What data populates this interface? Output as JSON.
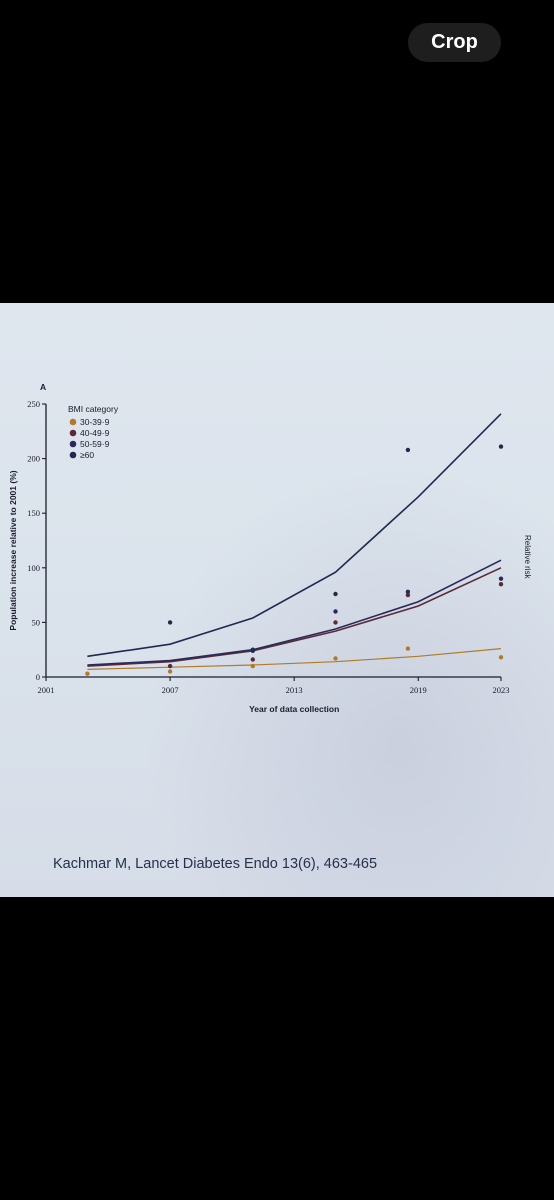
{
  "app": {
    "crop_label": "Crop"
  },
  "photo": {
    "citation": "Kachmar M, Lancet Diabetes Endo 13(6), 463-465",
    "right_edge_text": "Relative risk"
  },
  "colors": {
    "background": "#000000",
    "button_bg": "#1e1e1e",
    "paper": "#dde4ec",
    "series_30_39": "#b07a2a",
    "series_40_49": "#5a2a3a",
    "series_50_59": "#2a2a5a",
    "series_60": "#1e2a50"
  },
  "chart_data": {
    "type": "scatter",
    "panel_label": "A",
    "xlabel": "Year of data collection",
    "ylabel": "Population increase relative to 2001 (%)",
    "xlim": [
      2001,
      2023
    ],
    "ylim": [
      0,
      250
    ],
    "xticks": [
      2001,
      2007,
      2013,
      2019,
      2023
    ],
    "yticks": [
      0,
      50,
      100,
      150,
      200,
      250
    ],
    "legend_title": "BMI category",
    "legend_position": "top-left",
    "series": [
      {
        "name": "30-39·9",
        "color": "#b07a2a",
        "points": [
          [
            2003,
            3
          ],
          [
            2007,
            5
          ],
          [
            2011,
            10
          ],
          [
            2015,
            17
          ],
          [
            2018.5,
            26
          ],
          [
            2023,
            18
          ]
        ],
        "trend": [
          [
            2003,
            7
          ],
          [
            2007,
            9
          ],
          [
            2011,
            11
          ],
          [
            2015,
            14
          ],
          [
            2019,
            19
          ],
          [
            2023,
            26
          ]
        ]
      },
      {
        "name": "40-49·9",
        "color": "#5a2a3a",
        "points": [
          [
            2007,
            10
          ],
          [
            2011,
            16
          ],
          [
            2015,
            50
          ],
          [
            2018.5,
            75
          ],
          [
            2023,
            85
          ]
        ],
        "trend": [
          [
            2003,
            10
          ],
          [
            2007,
            14
          ],
          [
            2011,
            24
          ],
          [
            2015,
            42
          ],
          [
            2019,
            65
          ],
          [
            2023,
            100
          ]
        ]
      },
      {
        "name": "50-59·9",
        "color": "#2a2a5a",
        "points": [
          [
            2011,
            24
          ],
          [
            2015,
            60
          ],
          [
            2018.5,
            78
          ],
          [
            2023,
            90
          ]
        ],
        "trend": [
          [
            2003,
            11
          ],
          [
            2007,
            15
          ],
          [
            2011,
            25
          ],
          [
            2015,
            44
          ],
          [
            2019,
            69
          ],
          [
            2023,
            107
          ]
        ]
      },
      {
        "name": "≥60",
        "color": "#1e2a50",
        "points": [
          [
            2007,
            50
          ],
          [
            2011,
            25
          ],
          [
            2015,
            76
          ],
          [
            2018.5,
            208
          ],
          [
            2023,
            211
          ]
        ],
        "trend": [
          [
            2003,
            19
          ],
          [
            2007,
            30
          ],
          [
            2011,
            54
          ],
          [
            2015,
            96
          ],
          [
            2019,
            165
          ],
          [
            2023,
            241
          ]
        ]
      }
    ]
  }
}
